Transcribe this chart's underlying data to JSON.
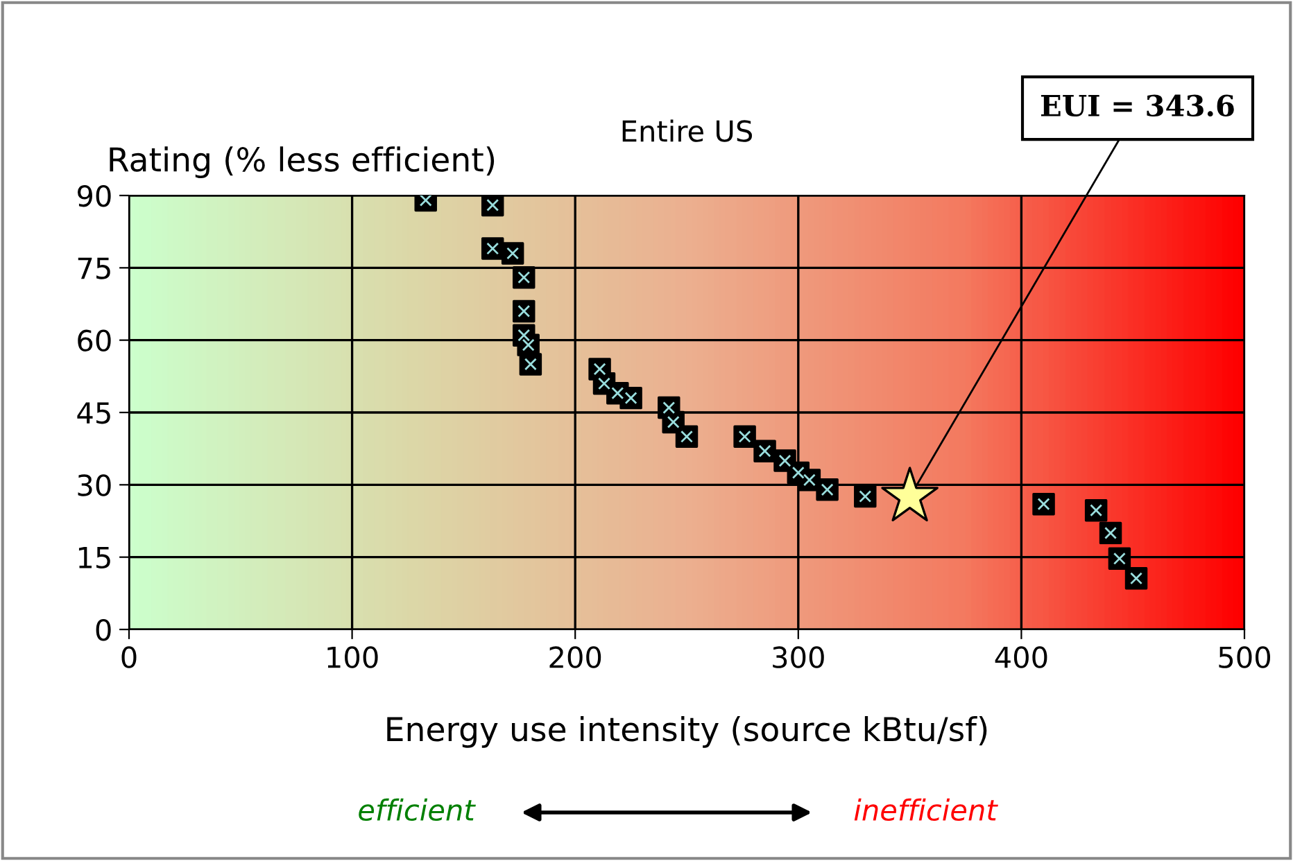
{
  "chart_data": {
    "type": "scatter",
    "title": "Entire US",
    "xlabel": "Energy use intensity (source kBtu/sf)",
    "ylabel": "Rating (% less efficient)",
    "xlim": [
      0,
      500
    ],
    "ylim": [
      0,
      90
    ],
    "xticks": [
      0,
      100,
      200,
      300,
      400,
      500
    ],
    "yticks": [
      0,
      15,
      30,
      45,
      60,
      75,
      90
    ],
    "grid": true,
    "marker": "square",
    "series": [
      {
        "color": "#000000",
        "x": [
          133,
          163,
          163,
          172,
          177,
          177,
          177,
          179,
          180,
          211,
          213,
          219,
          225,
          242,
          244,
          250,
          276,
          285,
          294,
          300,
          305,
          313,
          330,
          410,
          433.5,
          440,
          444,
          451.5
        ],
        "values": [
          89,
          88,
          79,
          78,
          73,
          66,
          61,
          59,
          55,
          54,
          51,
          49,
          48,
          46,
          43,
          40,
          40,
          37,
          35,
          32.5,
          31,
          29,
          27.6,
          26,
          24.7,
          20,
          14.7,
          10.6
        ]
      },
      {
        "color": "#ffff99",
        "marker": "star",
        "x": [
          350
        ],
        "values": [
          27.5
        ]
      }
    ],
    "annotations": [
      {
        "text": "EUI = 343.6",
        "x": 350,
        "y": 27.5
      },
      "efficient",
      "inefficient"
    ]
  }
}
